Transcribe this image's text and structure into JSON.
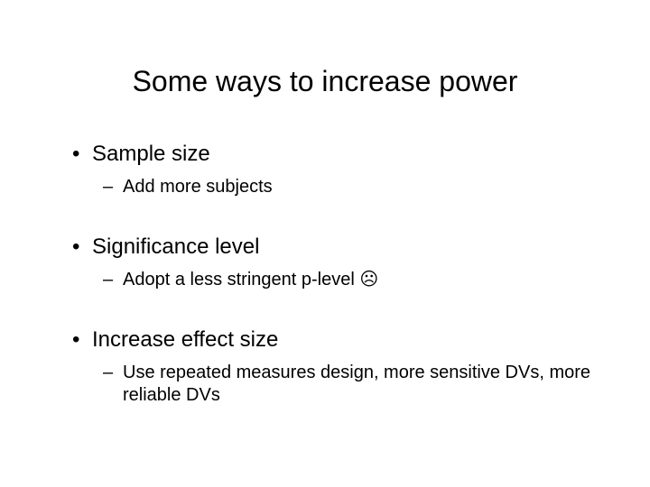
{
  "slide": {
    "title": "Some ways to increase power",
    "background_color": "#ffffff",
    "text_color": "#000000",
    "title_fontsize": 32,
    "body_fontsize_l1": 24,
    "body_fontsize_l2": 20,
    "font_family": "Arial",
    "bullets": [
      {
        "text": "Sample size",
        "sub": "Add more subjects"
      },
      {
        "text": "Significance level",
        "sub": "Adopt a less stringent p-level ☹"
      },
      {
        "text": "Increase effect size",
        "sub": "Use repeated measures design, more sensitive DVs, more reliable DVs"
      }
    ]
  }
}
